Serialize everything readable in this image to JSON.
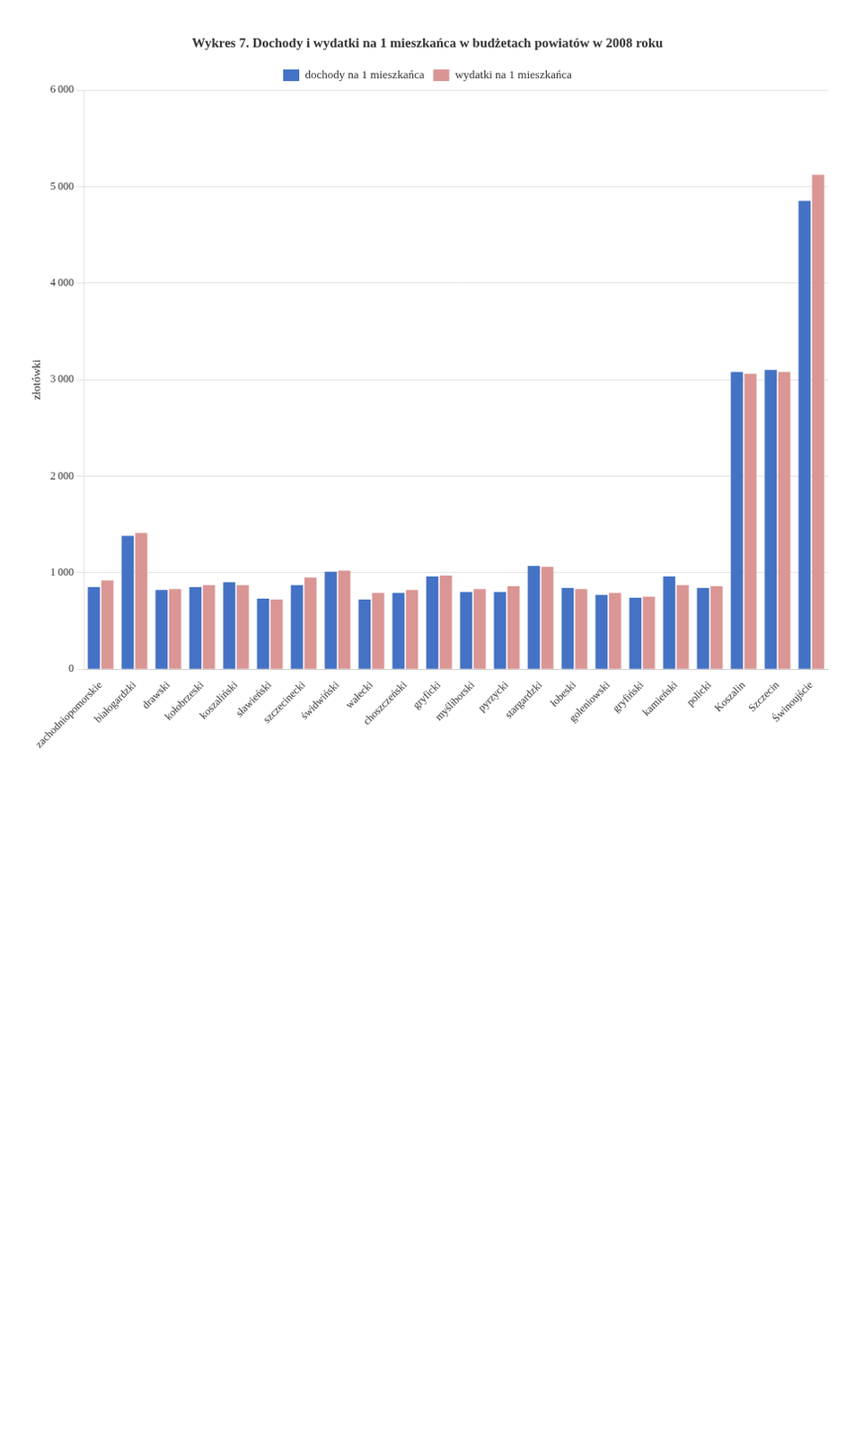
{
  "chart_data": {
    "type": "bar",
    "title": "Wykres 7. Dochody i wydatki na 1 mieszkańca w budżetach powiatów w 2008 roku",
    "ylabel": "złotówki",
    "categories": [
      "zachodniopomorskie",
      "białogardzki",
      "drawski",
      "kołobrzeski",
      "koszaliński",
      "sławieński",
      "szczecinecki",
      "świdwiński",
      "wałecki",
      "choszczeński",
      "gryficki",
      "myśliborski",
      "pyrzycki",
      "stargardzki",
      "łobeski",
      "goleniowski",
      "gryfiński",
      "kamieński",
      "policki",
      "Koszalin",
      "Szczecin",
      "Świnoujście"
    ],
    "series": [
      {
        "name": "dochody na 1 mieszkańca",
        "color": "#4472c4",
        "values": [
          850,
          1380,
          820,
          850,
          900,
          730,
          870,
          1010,
          720,
          790,
          960,
          800,
          800,
          1070,
          840,
          770,
          740,
          960,
          840,
          3080,
          3100,
          4850
        ]
      },
      {
        "name": "wydatki na 1 mieszkańca",
        "color": "#da9694",
        "values": [
          920,
          1410,
          830,
          870,
          870,
          720,
          950,
          1020,
          790,
          820,
          970,
          830,
          860,
          1060,
          830,
          790,
          750,
          870,
          860,
          3060,
          3080,
          5120
        ]
      }
    ],
    "ylim": [
      0,
      6000
    ],
    "yticks": [
      0,
      {
        "value": 1000,
        "label": "1 000"
      },
      {
        "value": 2000,
        "label": "2 000"
      },
      {
        "value": 3000,
        "label": "3 000"
      },
      {
        "value": 4000,
        "label": "4 000"
      },
      {
        "value": 5000,
        "label": "5 000"
      },
      {
        "value": 6000,
        "label": "6 000"
      }
    ],
    "grid": true,
    "legend": "top"
  }
}
